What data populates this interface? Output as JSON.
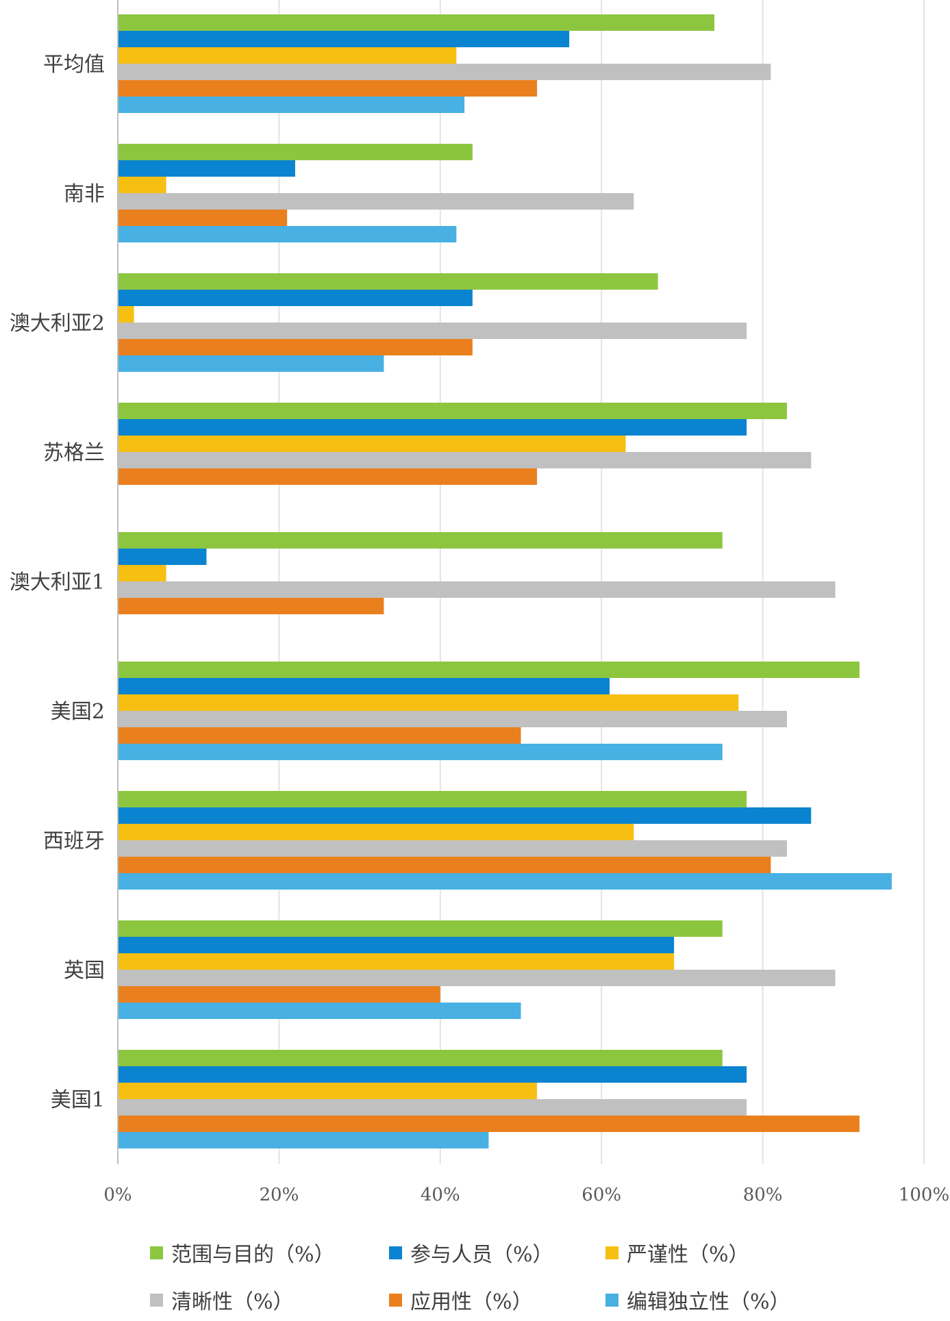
{
  "chart_data": {
    "type": "bar",
    "orientation": "horizontal",
    "title": "",
    "xlabel": "",
    "ylabel": "",
    "xlim": [
      0,
      100
    ],
    "grid": true,
    "legend_position": "bottom",
    "x_ticks": [
      "0%",
      "20%",
      "40%",
      "60%",
      "80%",
      "100%"
    ],
    "categories": [
      "平均值",
      "南非",
      "澳大利亚2",
      "苏格兰",
      "澳大利亚1",
      "美国2",
      "西班牙",
      "英国",
      "美国1"
    ],
    "series": [
      {
        "name": "范围与目的（%）",
        "color": "#8cc63f",
        "values": [
          74,
          44,
          67,
          83,
          75,
          92,
          78,
          75,
          75
        ]
      },
      {
        "name": "参与人员（%）",
        "color": "#0a84d0",
        "values": [
          56,
          22,
          44,
          78,
          11,
          61,
          86,
          69,
          78
        ]
      },
      {
        "name": "严谨性（%）",
        "color": "#f6bf12",
        "values": [
          42,
          6,
          2,
          63,
          6,
          77,
          64,
          69,
          52
        ]
      },
      {
        "name": "清晰性（%）",
        "color": "#c0c0c0",
        "values": [
          81,
          64,
          78,
          86,
          89,
          83,
          83,
          89,
          78
        ]
      },
      {
        "name": "应用性（%）",
        "color": "#ea7f1e",
        "values": [
          52,
          21,
          44,
          52,
          33,
          50,
          81,
          40,
          92
        ]
      },
      {
        "name": "编辑独立性（%）",
        "color": "#48b0e2",
        "values": [
          43,
          42,
          33,
          null,
          null,
          75,
          96,
          50,
          46
        ]
      }
    ]
  }
}
